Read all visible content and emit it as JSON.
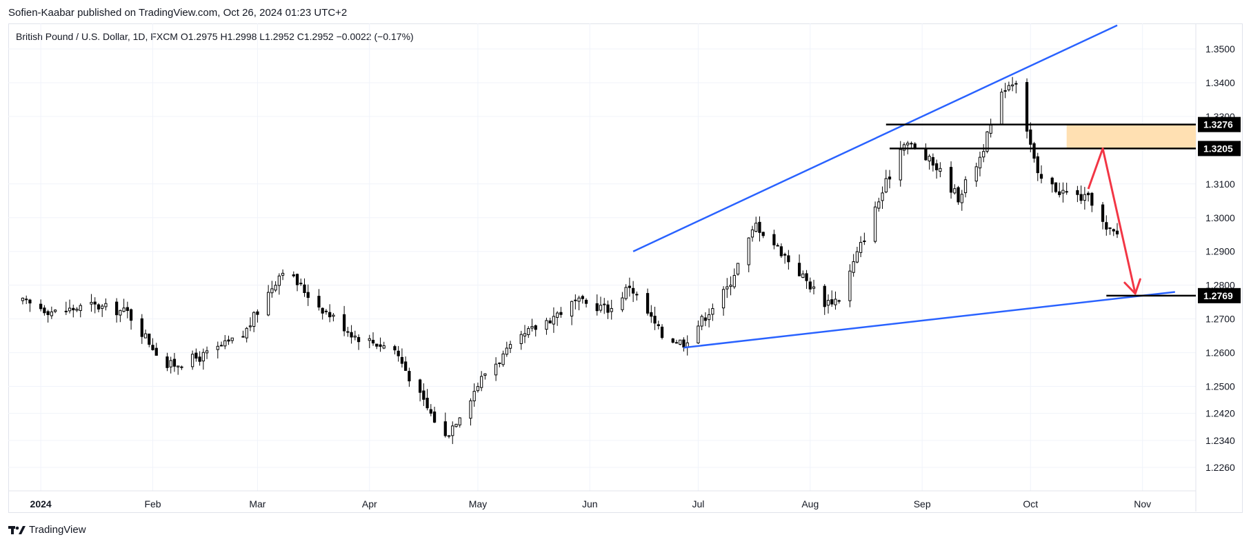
{
  "header": {
    "published_by": "Sofien-Kaabar published on TradingView.com, Oct 26, 2024 01:23 UTC+2"
  },
  "legend": {
    "text": "British Pound / U.S. Dollar, 1D, FXCM  O1.2975  H1.2998  L1.2952  C1.2952  −0.0022 (−0.17%)"
  },
  "footer": {
    "brand": "TradingView",
    "icon": "tradingview-logo-icon"
  },
  "colors": {
    "candle": "#000000",
    "trendline": "#2962ff",
    "arrow": "#f23645",
    "zone": "#ffe0b2",
    "grid": "#f0f3fa"
  },
  "chart_data": {
    "type": "candlestick",
    "title": "",
    "xlabel": "",
    "ylabel": "",
    "ylim": [
      1.22,
      1.358
    ],
    "y_ticks": [
      "1.3500",
      "1.3400",
      "1.3300",
      "1.3100",
      "1.3000",
      "1.2900",
      "1.2800",
      "1.2700",
      "1.2600",
      "1.2500",
      "1.2420",
      "1.2340",
      "1.2260"
    ],
    "y_tick_values": [
      1.35,
      1.34,
      1.33,
      1.31,
      1.3,
      1.29,
      1.28,
      1.27,
      1.26,
      1.25,
      1.242,
      1.234,
      1.226
    ],
    "x_ticks": [
      "2024",
      "Feb",
      "Mar",
      "Apr",
      "May",
      "Jun",
      "Jul",
      "Aug",
      "Sep",
      "Oct",
      "Nov"
    ],
    "x_tick_dates": [
      "2024-01-01",
      "2024-02-01",
      "2024-03-01",
      "2024-04-01",
      "2024-05-01",
      "2024-06-01",
      "2024-07-01",
      "2024-08-01",
      "2024-09-01",
      "2024-10-01",
      "2024-11-01"
    ],
    "price_labels": [
      "1.3276",
      "1.3205",
      "1.2769"
    ],
    "price_label_values": [
      1.3276,
      1.3205,
      1.2769
    ],
    "closes": [
      [
        "2023-12-27",
        1.275
      ],
      [
        "2024-01-05",
        1.272
      ],
      [
        "2024-01-15",
        1.274
      ],
      [
        "2024-01-25",
        1.272
      ],
      [
        "2024-02-05",
        1.256
      ],
      [
        "2024-02-15",
        1.259
      ],
      [
        "2024-02-26",
        1.265
      ],
      [
        "2024-03-08",
        1.285
      ],
      [
        "2024-03-18",
        1.274
      ],
      [
        "2024-03-28",
        1.265
      ],
      [
        "2024-04-08",
        1.261
      ],
      [
        "2024-04-15",
        1.247
      ],
      [
        "2024-04-22",
        1.235
      ],
      [
        "2024-05-03",
        1.254
      ],
      [
        "2024-05-15",
        1.266
      ],
      [
        "2024-05-28",
        1.275
      ],
      [
        "2024-06-07",
        1.273
      ],
      [
        "2024-06-12",
        1.28
      ],
      [
        "2024-06-21",
        1.265
      ],
      [
        "2024-06-27",
        1.263
      ],
      [
        "2024-07-09",
        1.279
      ],
      [
        "2024-07-17",
        1.298
      ],
      [
        "2024-07-24",
        1.29
      ],
      [
        "2024-08-05",
        1.275
      ],
      [
        "2024-08-09",
        1.276
      ],
      [
        "2024-08-20",
        1.305
      ],
      [
        "2024-08-27",
        1.323
      ],
      [
        "2024-09-05",
        1.315
      ],
      [
        "2024-09-11",
        1.306
      ],
      [
        "2024-09-17",
        1.318
      ],
      [
        "2024-09-24",
        1.339
      ],
      [
        "2024-09-27",
        1.341
      ],
      [
        "2024-10-03",
        1.312
      ],
      [
        "2024-10-09",
        1.308
      ],
      [
        "2024-10-15",
        1.306
      ],
      [
        "2024-10-18",
        1.305
      ],
      [
        "2024-10-22",
        1.296
      ],
      [
        "2024-10-25",
        1.2952
      ]
    ],
    "horizontal_levels": [
      {
        "label": "1.3276",
        "value": 1.3276,
        "from": "2024-08-22"
      },
      {
        "label": "1.3205",
        "value": 1.3205,
        "from": "2024-08-23"
      },
      {
        "label": "1.2769",
        "value": 1.2769,
        "from": "2024-10-22"
      }
    ],
    "resistance_zone": {
      "from": "2024-10-11",
      "y_range": [
        1.3205,
        1.3276
      ]
    },
    "trendlines": [
      {
        "points": [
          [
            "2024-06-13",
            1.29
          ],
          [
            "2024-10-25",
            1.357
          ]
        ]
      },
      {
        "points": [
          [
            "2024-06-27",
            1.2615
          ],
          [
            "2024-11-10",
            1.278
          ]
        ]
      }
    ],
    "projection_arrow": [
      [
        "2024-10-17",
        1.3085
      ],
      [
        "2024-10-21",
        1.3205
      ],
      [
        "2024-10-30",
        1.2775
      ]
    ],
    "grid": true
  }
}
